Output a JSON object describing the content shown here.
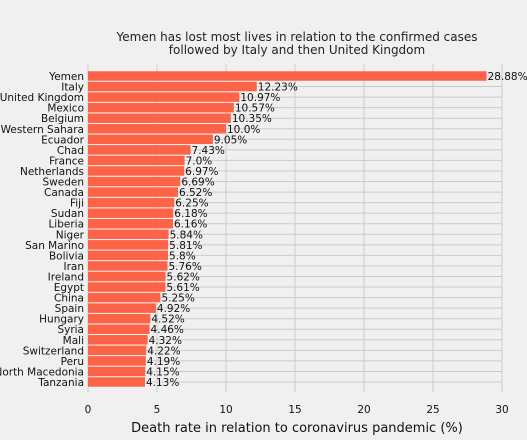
{
  "chart_data": {
    "type": "bar",
    "orientation": "horizontal",
    "title_lines": [
      "Yemen has lost most lives in relation to the confirmed cases",
      "followed by Italy and then United Kingdom"
    ],
    "xlabel": "Death rate in relation to coronavirus pandemic (%)",
    "ylabel": "",
    "xlim": [
      0,
      30
    ],
    "xticks": [
      0,
      5,
      10,
      15,
      20,
      25,
      30
    ],
    "grid": true,
    "bar_color": "#fc6347",
    "background": "#f0f0f0",
    "categories": [
      "Yemen",
      "Italy",
      "United Kingdom",
      "Mexico",
      "Belgium",
      "Western Sahara",
      "Ecuador",
      "Chad",
      "France",
      "Netherlands",
      "Sweden",
      "Canada",
      "Fiji",
      "Sudan",
      "Liberia",
      "Niger",
      "San Marino",
      "Bolivia",
      "Iran",
      "Ireland",
      "Egypt",
      "China",
      "Spain",
      "Hungary",
      "Syria",
      "Mali",
      "Switzerland",
      "Peru",
      "North Macedonia",
      "Tanzania"
    ],
    "values": [
      28.88,
      12.23,
      10.97,
      10.57,
      10.35,
      10.0,
      9.05,
      7.43,
      7.0,
      6.97,
      6.69,
      6.52,
      6.25,
      6.18,
      6.16,
      5.84,
      5.81,
      5.8,
      5.76,
      5.62,
      5.61,
      5.25,
      4.92,
      4.52,
      4.46,
      4.32,
      4.22,
      4.19,
      4.15,
      4.13
    ],
    "value_labels": [
      "28.88%",
      "12.23%",
      "10.97%",
      "10.57%",
      "10.35%",
      "10.0%",
      "9.05%",
      "7.43%",
      "7.0%",
      "6.97%",
      "6.69%",
      "6.52%",
      "6.25%",
      "6.18%",
      "6.16%",
      "5.84%",
      "5.81%",
      "5.8%",
      "5.76%",
      "5.62%",
      "5.61%",
      "5.25%",
      "4.92%",
      "4.52%",
      "4.46%",
      "4.32%",
      "4.22%",
      "4.19%",
      "4.15%",
      "4.13%"
    ]
  }
}
